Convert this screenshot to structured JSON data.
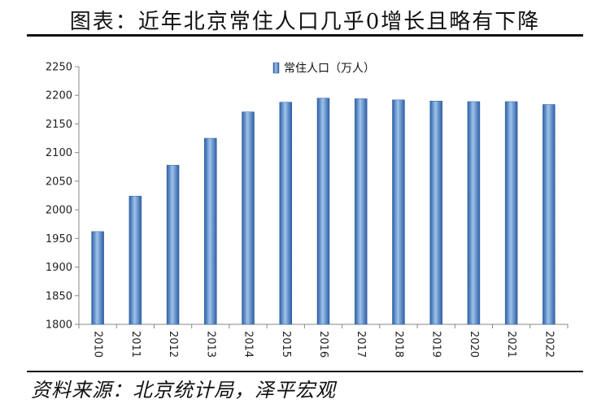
{
  "header": {
    "title": "图表：近年北京常住人口几乎0增长且略有下降"
  },
  "footer": {
    "source": "资料来源：北京统计局，泽平宏观"
  },
  "colors": {
    "bar_light": "#9ec3ea",
    "bar_mid": "#5b8ed0",
    "bar_dark": "#2d5fa6",
    "axis": "#888888"
  },
  "chart_data": {
    "type": "bar",
    "categories": [
      "2010",
      "2011",
      "2012",
      "2013",
      "2014",
      "2015",
      "2016",
      "2017",
      "2018",
      "2019",
      "2020",
      "2021",
      "2022"
    ],
    "series": [
      {
        "name": "常住人口（万人）",
        "values": [
          1962,
          2024,
          2078,
          2125,
          2171,
          2188,
          2195,
          2194,
          2192,
          2190,
          2189,
          2189,
          2184
        ]
      }
    ],
    "ylim": [
      1800,
      2250
    ],
    "yticks": [
      1800,
      1850,
      1900,
      1950,
      2000,
      2050,
      2100,
      2150,
      2200,
      2250
    ],
    "legend_position": "top-center",
    "grid": false
  }
}
